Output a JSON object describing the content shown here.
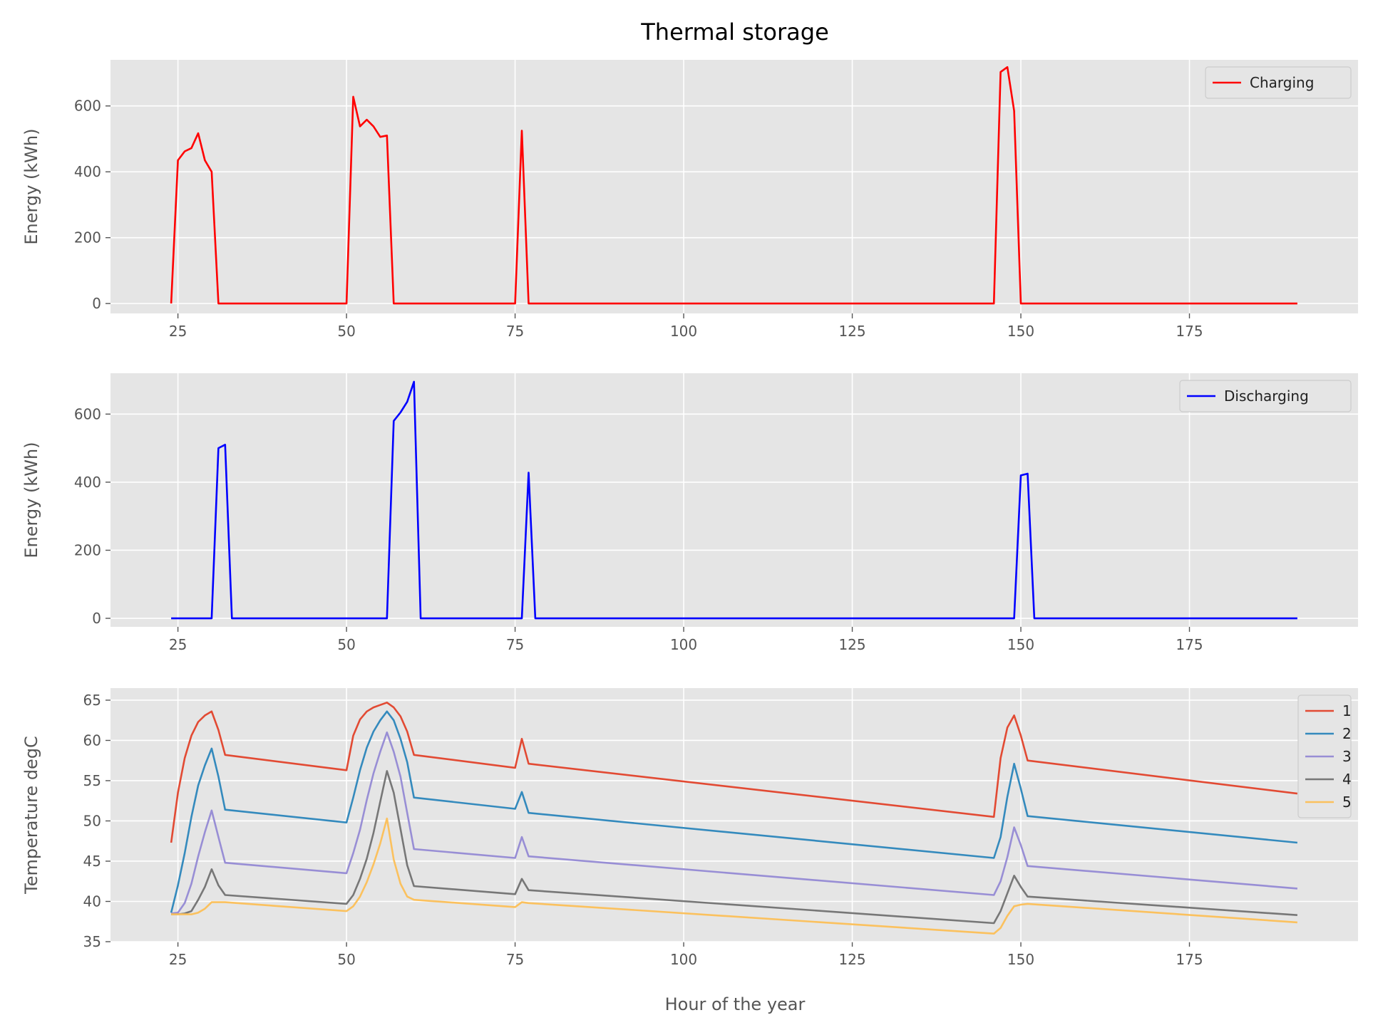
{
  "chart_data": {
    "title": "Thermal storage",
    "xlabel": "Hour of the year",
    "x_ticks": [
      25,
      50,
      75,
      100,
      125,
      150,
      175
    ],
    "panels": [
      {
        "type": "line",
        "ylabel": "Energy (kWh)",
        "xlim": [
          15,
          200
        ],
        "ylim": [
          -30,
          740
        ],
        "y_ticks": [
          0,
          200,
          400,
          600
        ],
        "legend_loc": "upper right",
        "series": [
          {
            "name": "Charging",
            "color": "#ff0000",
            "points": [
              [
                24,
                0
              ],
              [
                25,
                435
              ],
              [
                26,
                462
              ],
              [
                27,
                472
              ],
              [
                28,
                517
              ],
              [
                29,
                435
              ],
              [
                30,
                400
              ],
              [
                31,
                0
              ],
              [
                50,
                0
              ],
              [
                51,
                628
              ],
              [
                52,
                538
              ],
              [
                53,
                558
              ],
              [
                54,
                538
              ],
              [
                55,
                506
              ],
              [
                56,
                510
              ],
              [
                57,
                0
              ],
              [
                75,
                0
              ],
              [
                76,
                525
              ],
              [
                77,
                0
              ],
              [
                146,
                0
              ],
              [
                147,
                703
              ],
              [
                148,
                718
              ],
              [
                149,
                585
              ],
              [
                150,
                0
              ],
              [
                191,
                0
              ]
            ]
          }
        ]
      },
      {
        "type": "line",
        "ylabel": "Energy (kWh)",
        "xlim": [
          15,
          200
        ],
        "ylim": [
          -25,
          720
        ],
        "y_ticks": [
          0,
          200,
          400,
          600
        ],
        "legend_loc": "upper right",
        "series": [
          {
            "name": "Discharging",
            "color": "#0000ff",
            "points": [
              [
                24,
                0
              ],
              [
                30,
                0
              ],
              [
                31,
                500
              ],
              [
                32,
                510
              ],
              [
                33,
                0
              ],
              [
                56,
                0
              ],
              [
                57,
                580
              ],
              [
                58,
                605
              ],
              [
                59,
                636
              ],
              [
                60,
                695
              ],
              [
                61,
                0
              ],
              [
                76,
                0
              ],
              [
                77,
                428
              ],
              [
                78,
                0
              ],
              [
                149,
                0
              ],
              [
                150,
                420
              ],
              [
                151,
                425
              ],
              [
                152,
                0
              ],
              [
                191,
                0
              ]
            ]
          }
        ]
      },
      {
        "type": "line",
        "ylabel": "Temperature degC",
        "xlim": [
          15,
          200
        ],
        "ylim": [
          35,
          66.5
        ],
        "y_ticks": [
          35,
          40,
          45,
          50,
          55,
          60,
          65
        ],
        "legend_loc": "upper right",
        "series": [
          {
            "name": "1",
            "color": "#e24a33",
            "points": [
              [
                24,
                47.3
              ],
              [
                25,
                53.5
              ],
              [
                26,
                57.8
              ],
              [
                27,
                60.6
              ],
              [
                28,
                62.3
              ],
              [
                29,
                63.1
              ],
              [
                30,
                63.6
              ],
              [
                31,
                61.3
              ],
              [
                32,
                58.2
              ],
              [
                50,
                56.3
              ],
              [
                51,
                60.6
              ],
              [
                52,
                62.6
              ],
              [
                53,
                63.6
              ],
              [
                54,
                64.1
              ],
              [
                55,
                64.4
              ],
              [
                56,
                64.7
              ],
              [
                57,
                64.1
              ],
              [
                58,
                63.0
              ],
              [
                59,
                61.1
              ],
              [
                60,
                58.2
              ],
              [
                75,
                56.6
              ],
              [
                76,
                60.2
              ],
              [
                77,
                57.1
              ],
              [
                146,
                50.5
              ],
              [
                147,
                57.8
              ],
              [
                148,
                61.6
              ],
              [
                149,
                63.1
              ],
              [
                150,
                60.6
              ],
              [
                151,
                57.5
              ],
              [
                191,
                53.4
              ]
            ]
          },
          {
            "name": "2",
            "color": "#348abd",
            "points": [
              [
                24,
                38.6
              ],
              [
                25,
                42.0
              ],
              [
                26,
                46.0
              ],
              [
                27,
                50.5
              ],
              [
                28,
                54.4
              ],
              [
                29,
                56.9
              ],
              [
                30,
                59.0
              ],
              [
                31,
                55.5
              ],
              [
                32,
                51.4
              ],
              [
                50,
                49.8
              ],
              [
                51,
                52.9
              ],
              [
                52,
                56.3
              ],
              [
                53,
                59.1
              ],
              [
                54,
                61.1
              ],
              [
                55,
                62.5
              ],
              [
                56,
                63.6
              ],
              [
                57,
                62.5
              ],
              [
                58,
                60.2
              ],
              [
                59,
                57.3
              ],
              [
                60,
                52.9
              ],
              [
                75,
                51.5
              ],
              [
                76,
                53.6
              ],
              [
                77,
                51.0
              ],
              [
                146,
                45.4
              ],
              [
                147,
                48.0
              ],
              [
                148,
                53.0
              ],
              [
                149,
                57.1
              ],
              [
                150,
                54.0
              ],
              [
                151,
                50.6
              ],
              [
                191,
                47.3
              ]
            ]
          },
          {
            "name": "3",
            "color": "#988ed5",
            "points": [
              [
                24,
                38.5
              ],
              [
                25,
                38.6
              ],
              [
                26,
                39.8
              ],
              [
                27,
                42.2
              ],
              [
                28,
                45.6
              ],
              [
                29,
                48.6
              ],
              [
                30,
                51.3
              ],
              [
                31,
                48.0
              ],
              [
                32,
                44.8
              ],
              [
                50,
                43.5
              ],
              [
                51,
                46.0
              ],
              [
                52,
                48.9
              ],
              [
                53,
                52.6
              ],
              [
                54,
                55.9
              ],
              [
                55,
                58.6
              ],
              [
                56,
                61.0
              ],
              [
                57,
                58.6
              ],
              [
                58,
                55.5
              ],
              [
                59,
                51.0
              ],
              [
                60,
                46.5
              ],
              [
                75,
                45.4
              ],
              [
                76,
                48.0
              ],
              [
                77,
                45.6
              ],
              [
                146,
                40.8
              ],
              [
                147,
                42.5
              ],
              [
                148,
                45.5
              ],
              [
                149,
                49.2
              ],
              [
                150,
                47.0
              ],
              [
                151,
                44.4
              ],
              [
                191,
                41.6
              ]
            ]
          },
          {
            "name": "4",
            "color": "#777777",
            "points": [
              [
                24,
                38.4
              ],
              [
                25,
                38.4
              ],
              [
                26,
                38.5
              ],
              [
                27,
                38.8
              ],
              [
                28,
                40.2
              ],
              [
                29,
                41.8
              ],
              [
                30,
                44.0
              ],
              [
                31,
                42.0
              ],
              [
                32,
                40.8
              ],
              [
                50,
                39.7
              ],
              [
                51,
                40.8
              ],
              [
                52,
                42.8
              ],
              [
                53,
                45.3
              ],
              [
                54,
                48.5
              ],
              [
                55,
                52.4
              ],
              [
                56,
                56.2
              ],
              [
                57,
                53.5
              ],
              [
                58,
                49.0
              ],
              [
                59,
                44.5
              ],
              [
                60,
                41.9
              ],
              [
                75,
                40.9
              ],
              [
                76,
                42.8
              ],
              [
                77,
                41.4
              ],
              [
                146,
                37.3
              ],
              [
                147,
                38.8
              ],
              [
                148,
                41.0
              ],
              [
                149,
                43.2
              ],
              [
                150,
                41.8
              ],
              [
                151,
                40.6
              ],
              [
                191,
                38.3
              ]
            ]
          },
          {
            "name": "5",
            "color": "#fbc15e",
            "points": [
              [
                24,
                38.4
              ],
              [
                25,
                38.4
              ],
              [
                26,
                38.4
              ],
              [
                27,
                38.4
              ],
              [
                28,
                38.6
              ],
              [
                29,
                39.1
              ],
              [
                30,
                39.9
              ],
              [
                31,
                39.9
              ],
              [
                32,
                39.9
              ],
              [
                50,
                38.8
              ],
              [
                51,
                39.4
              ],
              [
                52,
                40.6
              ],
              [
                53,
                42.4
              ],
              [
                54,
                44.6
              ],
              [
                55,
                47.2
              ],
              [
                56,
                50.3
              ],
              [
                57,
                45.2
              ],
              [
                58,
                42.2
              ],
              [
                59,
                40.6
              ],
              [
                60,
                40.2
              ],
              [
                75,
                39.3
              ],
              [
                76,
                39.9
              ],
              [
                77,
                39.8
              ],
              [
                146,
                36.0
              ],
              [
                147,
                36.7
              ],
              [
                148,
                38.2
              ],
              [
                149,
                39.4
              ],
              [
                150,
                39.6
              ],
              [
                151,
                39.7
              ],
              [
                191,
                37.4
              ]
            ]
          }
        ]
      }
    ]
  },
  "colors": {
    "axes_background": "#e5e5e5",
    "grid": "#ffffff",
    "tick_text": "#555555"
  }
}
